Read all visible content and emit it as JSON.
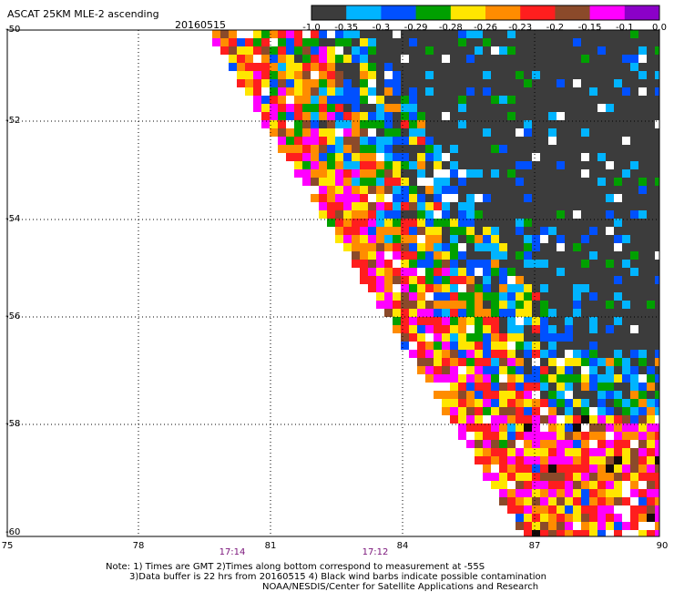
{
  "header": {
    "title": "ASCAT 25KM MLE-2 ascending",
    "date": "20160515"
  },
  "colorbar": {
    "labels": [
      "-1.0",
      "-0.35",
      "-0.3",
      "-0.29",
      "-0.28",
      "-0.26",
      "-0.23",
      "-0.2",
      "-0.15",
      "-0.1",
      "0.0"
    ],
    "colors": [
      "#3c3c3c",
      "#00b4ff",
      "#0050ff",
      "#00a000",
      "#ffe600",
      "#ff8c00",
      "#ff1e1e",
      "#8b4a2a",
      "#ff00ff",
      "#8b00c8"
    ]
  },
  "axes": {
    "y_labels": [
      "-50",
      "-52",
      "-54",
      "-56",
      "-58",
      "-60"
    ],
    "x_labels": [
      "75",
      "78",
      "81",
      "84",
      "87",
      "90"
    ],
    "time_labels": [
      "17:14",
      "17:12"
    ]
  },
  "notes": {
    "line1": "Note: 1) Times are GMT 2)Times along bottom correspond to measurement at -55S",
    "line2": "3)Data buffer is 22 hrs from 20160515 4) Black wind barbs indicate possible contamination",
    "line3": "NOAA/NESDIS/Center for Satellite Applications and Research"
  }
}
